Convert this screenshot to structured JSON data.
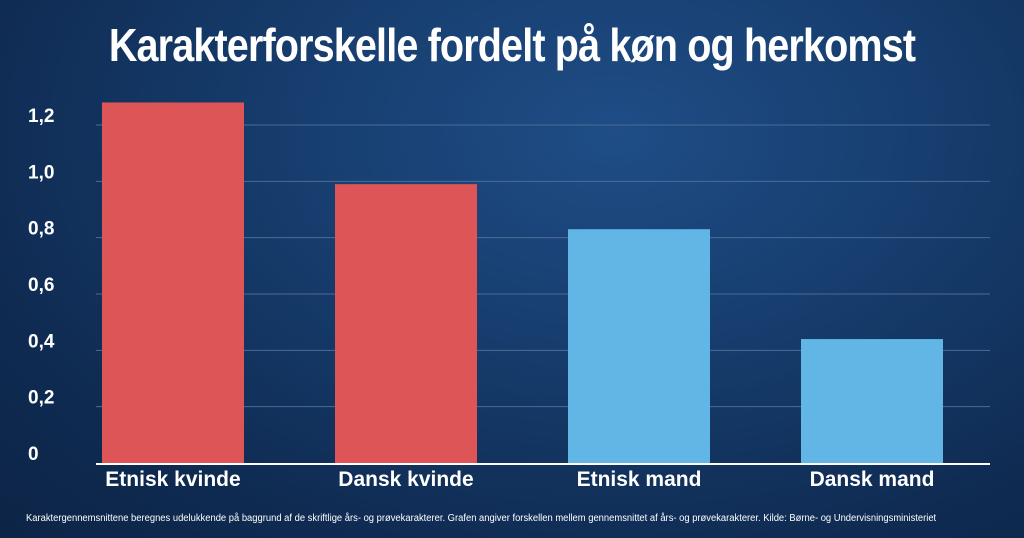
{
  "title": "Karakterforskelle fordelt på køn og herkomst",
  "footnote": "Karaktergennemsnittene beregnes udelukkende på baggrund af de skriftlige års- og prøvekarakterer. Grafen angiver forskellen mellem gennemsnittet af års- og prøvekarakterer. Kilde: Børne- og Undervisningsministeriet",
  "colors": {
    "kvinde": "#dd5557",
    "mand": "#62b6e6",
    "gridline": "#4a6c97",
    "axis": "#ffffff",
    "text": "#ffffff"
  },
  "chart_data": {
    "type": "bar",
    "categories": [
      "Etnisk kvinde",
      "Dansk kvinde",
      "Etnisk mand",
      "Dansk mand"
    ],
    "values": [
      1.28,
      0.99,
      0.83,
      0.44
    ],
    "bar_colors": [
      "#dd5557",
      "#dd5557",
      "#62b6e6",
      "#62b6e6"
    ],
    "title": "Karakterforskelle fordelt på køn og herkomst",
    "xlabel": "",
    "ylabel": "",
    "ylim": [
      0,
      1.2
    ],
    "yticks": [
      0,
      0.2,
      0.4,
      0.6,
      0.8,
      1.0,
      1.2
    ],
    "ytick_labels": [
      "0",
      "0,2",
      "0,4",
      "0,6",
      "0,8",
      "1,0",
      "1,2"
    ],
    "grid": true,
    "legend": "none"
  }
}
